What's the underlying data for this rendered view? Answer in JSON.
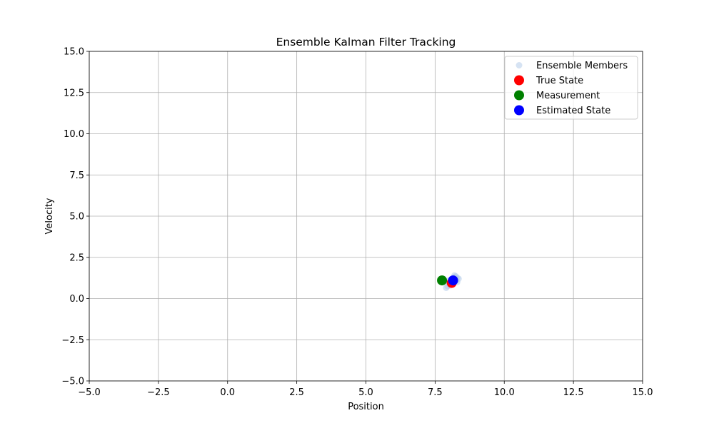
{
  "chart_data": {
    "type": "scatter",
    "title": "Ensemble Kalman Filter Tracking",
    "xlabel": "Position",
    "ylabel": "Velocity",
    "xlim": [
      -5,
      15
    ],
    "ylim": [
      -5,
      15
    ],
    "grid": true,
    "legend_position": "top-right",
    "x_ticks": [
      -5.0,
      -2.5,
      0.0,
      2.5,
      5.0,
      7.5,
      10.0,
      12.5,
      15.0
    ],
    "x_tick_labels": [
      "−5.0",
      "−2.5",
      "0.0",
      "2.5",
      "5.0",
      "7.5",
      "10.0",
      "12.5",
      "15.0"
    ],
    "y_ticks": [
      -5.0,
      -2.5,
      0.0,
      2.5,
      5.0,
      7.5,
      10.0,
      12.5,
      15.0
    ],
    "y_tick_labels": [
      "−5.0",
      "−2.5",
      "0.0",
      "2.5",
      "5.0",
      "7.5",
      "10.0",
      "12.5",
      "15.0"
    ],
    "series": [
      {
        "name": "Ensemble Members",
        "color": "#aec7e8",
        "alpha": 0.5,
        "points": [
          [
            8.05,
            1.0
          ],
          [
            8.1,
            1.05
          ],
          [
            8.15,
            1.1
          ],
          [
            8.2,
            1.15
          ],
          [
            8.25,
            1.2
          ],
          [
            8.2,
            1.3
          ],
          [
            8.3,
            1.25
          ],
          [
            8.1,
            0.95
          ],
          [
            8.0,
            0.9
          ],
          [
            7.95,
            0.75
          ],
          [
            7.9,
            0.65
          ],
          [
            8.05,
            0.8
          ],
          [
            8.15,
            0.9
          ],
          [
            8.25,
            1.05
          ],
          [
            8.35,
            1.2
          ],
          [
            8.2,
            1.4
          ],
          [
            8.25,
            1.35
          ],
          [
            8.1,
            1.2
          ],
          [
            8.0,
            1.1
          ],
          [
            8.3,
            1.0
          ]
        ]
      },
      {
        "name": "True State",
        "color": "#ff0000",
        "points": [
          [
            8.1,
            0.95
          ]
        ]
      },
      {
        "name": "Measurement",
        "color": "#008000",
        "points": [
          [
            7.75,
            1.1
          ]
        ]
      },
      {
        "name": "Estimated State",
        "color": "#0000ff",
        "points": [
          [
            8.15,
            1.1
          ]
        ]
      }
    ]
  }
}
